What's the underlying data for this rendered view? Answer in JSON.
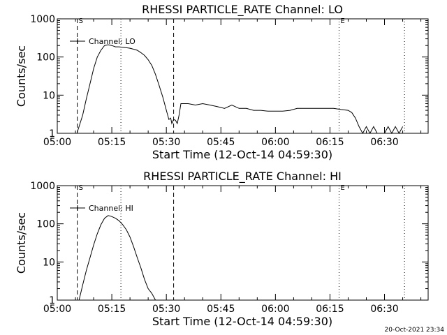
{
  "footer": {
    "timestamp": "20-Oct-2021 23:34"
  },
  "chart_data": [
    {
      "type": "line",
      "title": "RHESSI PARTICLE_RATE Channel: LO",
      "xlabel": "Start Time (12-Oct-14 04:59:30)",
      "ylabel": "Counts/sec",
      "yscale": "log",
      "ylim": [
        1,
        1000
      ],
      "xlim": [
        "05:00",
        "06:42"
      ],
      "x_ticks": [
        "05:00",
        "05:15",
        "05:30",
        "05:45",
        "06:00",
        "06:15",
        "06:30"
      ],
      "y_ticks": [
        "1",
        "10",
        "100",
        "1000"
      ],
      "legend": {
        "label": "Channel: LO",
        "position": "top-left"
      },
      "markers": [
        {
          "time": "05:05.5",
          "style": "dashed",
          "label": "S"
        },
        {
          "time": "05:17.5",
          "style": "dotted",
          "label": ""
        },
        {
          "time": "05:32.0",
          "style": "dashed",
          "label": ""
        },
        {
          "time": "06:17.5",
          "style": "dotted",
          "label": "E"
        },
        {
          "time": "06:35.5",
          "style": "dotted",
          "label": ""
        }
      ],
      "series": [
        {
          "x": [
            "05:05.4",
            "05:06.0",
            "05:07.0",
            "05:08.0",
            "05:09.0",
            "05:10.0",
            "05:11.0",
            "05:12.0",
            "05:13.0",
            "05:14.0",
            "05:15.0",
            "05:16.0",
            "05:17.0",
            "05:18.0",
            "05:19.0",
            "05:20.0",
            "05:21.0",
            "05:22.0",
            "05:23.0",
            "05:24.0",
            "05:25.0",
            "05:26.0",
            "05:27.0",
            "05:28.0",
            "05:29.0",
            "05:30.0",
            "05:30.7",
            "05:31.2",
            "05:31.5",
            "05:32.0",
            "05:32.5",
            "05:33.0",
            "05:33.5",
            "05:34.0",
            "05:36.0",
            "05:38.0",
            "05:40.0",
            "05:42.0",
            "05:44.0",
            "05:46.0",
            "05:48.0",
            "05:50.0",
            "05:52.0",
            "05:54.0",
            "05:56.0",
            "05:58.0",
            "06:00.0",
            "06:02.0",
            "06:04.0",
            "06:06.0",
            "06:08.0",
            "06:10.0",
            "06:12.0",
            "06:14.0",
            "06:16.0",
            "06:18.0",
            "06:20.0",
            "06:21.0",
            "06:22.0",
            "06:23.0",
            "06:24.0",
            "06:25.0",
            "06:26.0",
            "06:27.0",
            "06:28.0",
            "06:29.0",
            "06:30.0",
            "06:31.0",
            "06:32.0",
            "06:33.0",
            "06:34.0",
            "06:35.0"
          ],
          "y": [
            1,
            1.5,
            3,
            8,
            20,
            50,
            100,
            150,
            200,
            210,
            200,
            185,
            185,
            180,
            175,
            170,
            160,
            150,
            130,
            110,
            85,
            60,
            35,
            18,
            9,
            4,
            2.3,
            2.5,
            1.8,
            2.3,
            2.2,
            1.8,
            3,
            6,
            6,
            5.5,
            6,
            5.5,
            5,
            4.5,
            5.5,
            4.5,
            4.5,
            4,
            4,
            3.8,
            3.8,
            3.8,
            4,
            4.5,
            4.5,
            4.5,
            4.5,
            4.5,
            4.5,
            4.2,
            4,
            3.5,
            2.5,
            1.5,
            1,
            1.5,
            1,
            1.5,
            1,
            1,
            1,
            1.5,
            1,
            1.5,
            1,
            1.5
          ]
        }
      ]
    },
    {
      "type": "line",
      "title": "RHESSI PARTICLE_RATE Channel: HI",
      "xlabel": "Start Time (12-Oct-14 04:59:30)",
      "ylabel": "Counts/sec",
      "yscale": "log",
      "ylim": [
        1,
        1000
      ],
      "xlim": [
        "05:00",
        "06:42"
      ],
      "x_ticks": [
        "05:00",
        "05:15",
        "05:30",
        "05:45",
        "06:00",
        "06:15",
        "06:30"
      ],
      "y_ticks": [
        "1",
        "10",
        "100",
        "1000"
      ],
      "legend": {
        "label": "Channel: HI",
        "position": "top-left"
      },
      "markers": [
        {
          "time": "05:05.5",
          "style": "dashed",
          "label": "S"
        },
        {
          "time": "05:17.5",
          "style": "dotted",
          "label": ""
        },
        {
          "time": "05:32.0",
          "style": "dashed",
          "label": ""
        },
        {
          "time": "06:17.5",
          "style": "dotted",
          "label": "E"
        },
        {
          "time": "06:35.5",
          "style": "dotted",
          "label": ""
        }
      ],
      "series": [
        {
          "x": [
            "05:06.0",
            "05:07.0",
            "05:08.0",
            "05:09.0",
            "05:10.0",
            "05:11.0",
            "05:12.0",
            "05:13.0",
            "05:14.0",
            "05:15.0",
            "05:16.0",
            "05:17.0",
            "05:18.0",
            "05:19.0",
            "05:20.0",
            "05:21.0",
            "05:22.0",
            "05:23.0",
            "05:24.0",
            "05:25.0",
            "05:26.0",
            "05:27.0"
          ],
          "y": [
            1,
            2.5,
            6,
            13,
            28,
            55,
            95,
            140,
            165,
            155,
            140,
            120,
            95,
            70,
            45,
            25,
            13,
            7,
            3.5,
            2,
            1.5,
            1
          ]
        }
      ]
    }
  ]
}
